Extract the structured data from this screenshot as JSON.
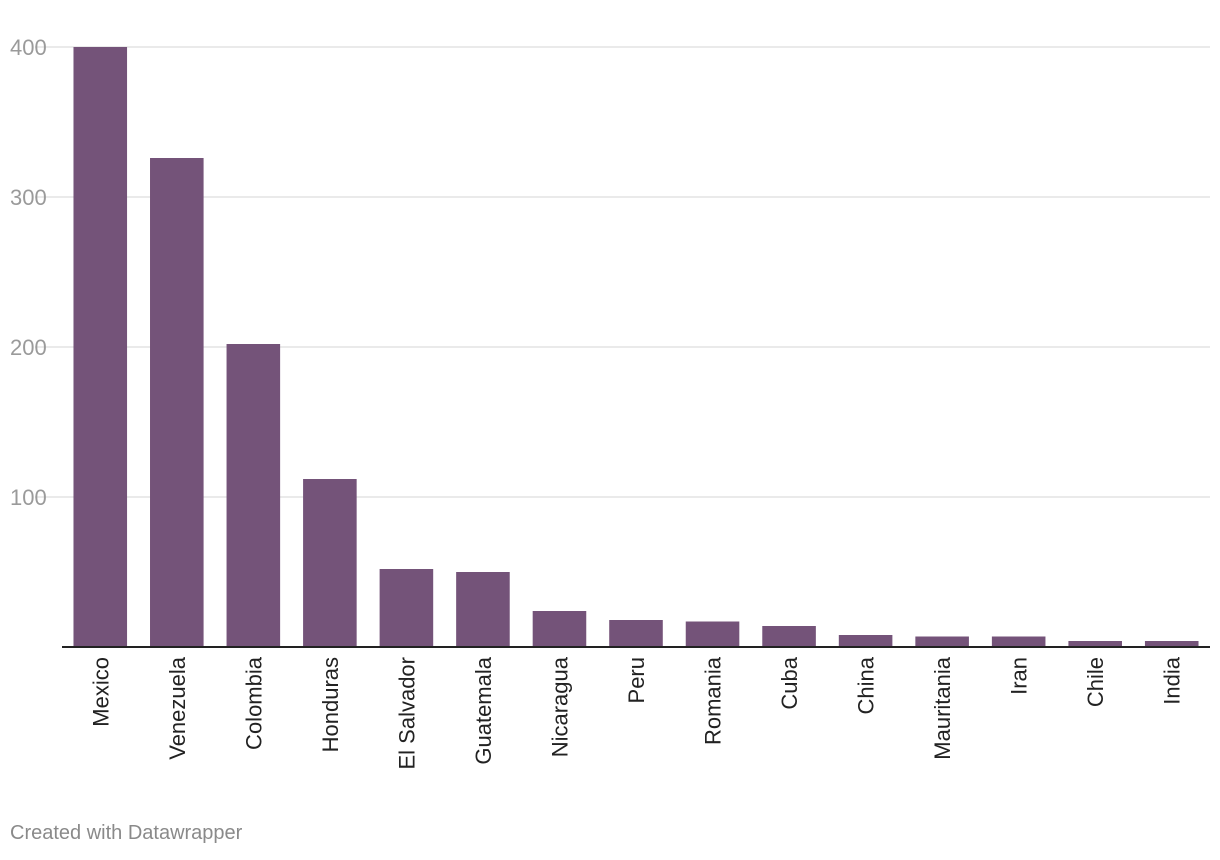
{
  "chart_data": {
    "type": "bar",
    "categories": [
      "Mexico",
      "Venezuela",
      "Colombia",
      "Honduras",
      "El Salvador",
      "Guatemala",
      "Nicaragua",
      "Peru",
      "Romania",
      "Cuba",
      "China",
      "Mauritania",
      "Iran",
      "Chile",
      "India"
    ],
    "values": [
      400,
      326,
      202,
      112,
      52,
      50,
      24,
      18,
      17,
      14,
      8,
      7,
      7,
      4,
      4
    ],
    "yticks": [
      100,
      200,
      300,
      400
    ],
    "ylim": [
      0,
      400
    ],
    "grid": true,
    "legend": "none",
    "bar_color": "#745379"
  },
  "footer": {
    "credit": "Created with Datawrapper"
  }
}
